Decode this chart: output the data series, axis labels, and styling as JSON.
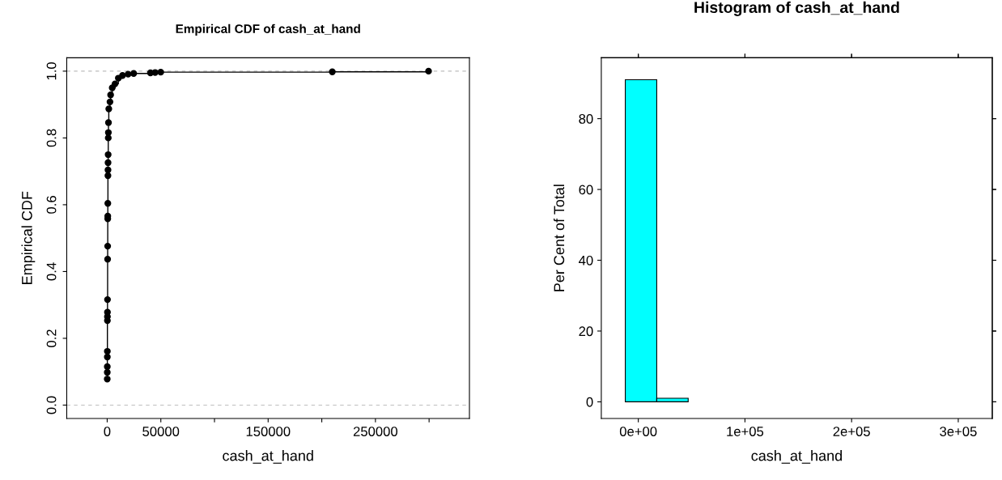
{
  "chart_data": [
    {
      "type": "step",
      "title": "Empirical CDF of cash_at_hand",
      "xlabel": "cash_at_hand",
      "ylabel": "Empirical CDF",
      "x": [
        50,
        80,
        100,
        130,
        150,
        200,
        220,
        250,
        300,
        400,
        450,
        520,
        550,
        600,
        700,
        750,
        800,
        900,
        1000,
        1100,
        1200,
        1500,
        2600,
        3200,
        4700,
        7300,
        10400,
        14300,
        19500,
        24700,
        40300,
        44700,
        49900,
        209800,
        299500
      ],
      "series": [
        {
          "color": "#000000",
          "values": [
            0.078,
            0.098,
            0.115,
            0.144,
            0.161,
            0.253,
            0.265,
            0.278,
            0.316,
            0.437,
            0.476,
            0.558,
            0.566,
            0.604,
            0.687,
            0.704,
            0.726,
            0.75,
            0.8,
            0.816,
            0.846,
            0.887,
            0.908,
            0.929,
            0.95,
            0.962,
            0.979,
            0.987,
            0.991,
            0.993,
            0.995,
            0.996,
            0.997,
            0.998,
            1.0
          ]
        }
      ],
      "marker": "circle",
      "xlim": [
        -37700,
        337600
      ],
      "ylim": [
        -0.04,
        1.04
      ],
      "xticks": [
        0,
        50000,
        {
          "value": 100000,
          "label": null
        },
        150000,
        {
          "value": 200000,
          "label": null
        },
        250000,
        {
          "value": 300000,
          "label": null
        }
      ],
      "yticks": [
        {
          "value": 0,
          "label": "0.0"
        },
        {
          "value": 0.2,
          "label": "0.2"
        },
        {
          "value": 0.4,
          "label": "0.4"
        },
        {
          "value": 0.6,
          "label": "0.6"
        },
        {
          "value": 0.8,
          "label": "0.8"
        },
        {
          "value": 1,
          "label": "1.0"
        }
      ],
      "ref_lines": [
        {
          "axis": "y",
          "value": 0,
          "color": "#bebebe",
          "line_style": "dashed"
        },
        {
          "axis": "y",
          "value": 1,
          "color": "#bebebe",
          "line_style": "dashed"
        }
      ],
      "grid": false,
      "legend": false
    },
    {
      "type": "histogram",
      "title": "Histogram of cash_at_hand",
      "xlabel": "cash_at_hand",
      "ylabel": "Per Cent of Total",
      "bins": [
        -12200,
        17280,
        46760,
        76240,
        105720,
        135200,
        164680,
        194160,
        223640,
        253120,
        282600,
        312080
      ],
      "values": [
        91,
        1,
        0,
        0,
        0,
        0,
        0,
        0,
        0,
        0,
        0
      ],
      "color": "#00ffff",
      "xlim": [
        -34700,
        331900
      ],
      "ylim": [
        -4.7,
        97.2
      ],
      "xticks": [
        {
          "value": 0,
          "label": "0e+00"
        },
        {
          "value": 100000,
          "label": "1e+05"
        },
        {
          "value": 200000,
          "label": "2e+05"
        },
        {
          "value": 300000,
          "label": "3e+05"
        }
      ],
      "yticks": [
        0,
        20,
        40,
        60,
        80
      ],
      "grid": false,
      "legend": false
    }
  ]
}
